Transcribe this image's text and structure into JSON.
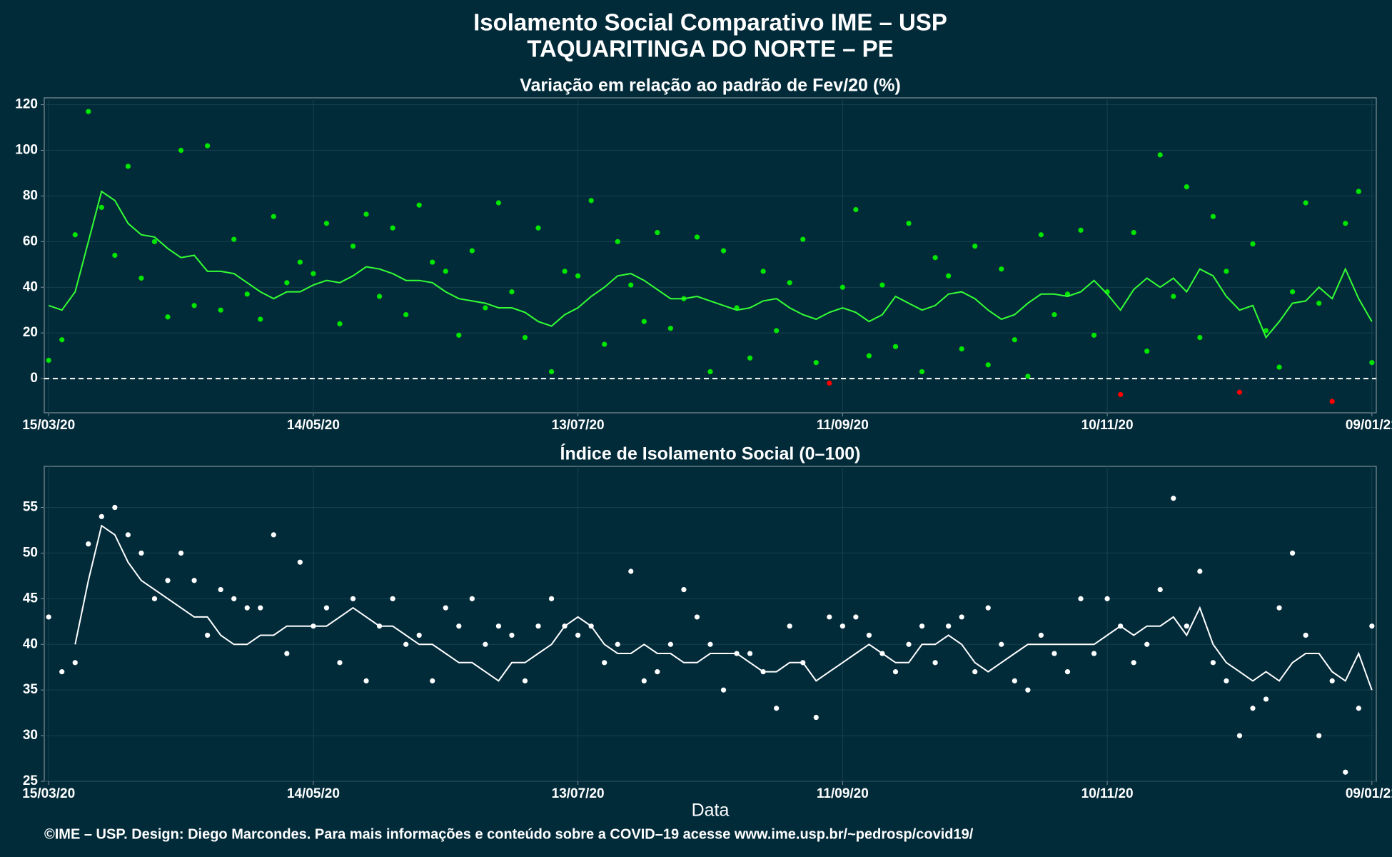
{
  "title": "Isolamento Social Comparativo IME – USP",
  "subtitle": "TAQUARITINGA DO NORTE – PE",
  "footer": "©IME – USP. Design: Diego Marcondes. Para mais informações e conteúdo sobre a COVID–19 acesse www.ime.usp.br/~pedrosp/covid19/",
  "chart_data": [
    {
      "type": "scatter",
      "title": "Variação em relação ao padrão de Fev/20 (%)",
      "x": [
        0,
        3,
        6,
        9,
        12,
        15,
        18,
        21,
        24,
        27,
        30,
        33,
        36,
        39,
        42,
        45,
        48,
        51,
        54,
        57,
        60,
        63,
        66,
        69,
        72,
        75,
        78,
        81,
        84,
        87,
        90,
        93,
        96,
        99,
        102,
        105,
        108,
        111,
        114,
        117,
        120,
        123,
        126,
        129,
        132,
        135,
        138,
        141,
        144,
        147,
        150,
        153,
        156,
        159,
        162,
        165,
        168,
        171,
        174,
        177,
        180,
        183,
        186,
        189,
        192,
        195,
        198,
        201,
        204,
        207,
        210,
        213,
        216,
        219,
        222,
        225,
        228,
        231,
        234,
        237,
        240,
        243,
        246,
        249,
        252,
        255,
        258,
        261,
        264,
        267,
        270,
        273,
        276,
        279,
        282,
        285,
        288,
        291,
        294,
        297,
        300
      ],
      "series": [
        {
          "color": "#00e600",
          "negative_color": "#ff0000",
          "mode": "points",
          "values": [
            8,
            17,
            63,
            117,
            75,
            54,
            93,
            44,
            60,
            27,
            100,
            32,
            102,
            30,
            61,
            37,
            26,
            71,
            42,
            51,
            46,
            68,
            24,
            58,
            72,
            36,
            66,
            28,
            76,
            51,
            47,
            19,
            56,
            31,
            77,
            38,
            18,
            66,
            3,
            47,
            45,
            78,
            15,
            60,
            41,
            25,
            64,
            22,
            35,
            62,
            3,
            56,
            31,
            9,
            47,
            21,
            42,
            61,
            7,
            -2,
            40,
            74,
            10,
            41,
            14,
            68,
            3,
            53,
            45,
            13,
            58,
            6,
            48,
            17,
            1,
            63,
            28,
            37,
            65,
            19,
            38,
            -7,
            64,
            12,
            98,
            36,
            84,
            18,
            71,
            47,
            -6,
            59,
            21,
            5,
            38,
            77,
            33,
            -10,
            68,
            82,
            7
          ]
        },
        {
          "color": "#33ff33",
          "mode": "line",
          "values": [
            32,
            30,
            38,
            60,
            82,
            78,
            68,
            63,
            62,
            57,
            53,
            54,
            47,
            47,
            46,
            42,
            38,
            35,
            38,
            38,
            41,
            43,
            42,
            45,
            49,
            48,
            46,
            43,
            43,
            42,
            38,
            35,
            34,
            33,
            31,
            31,
            29,
            25,
            23,
            28,
            31,
            36,
            40,
            45,
            46,
            43,
            39,
            35,
            35,
            36,
            34,
            32,
            30,
            31,
            34,
            35,
            31,
            28,
            26,
            29,
            31,
            29,
            25,
            28,
            36,
            33,
            30,
            32,
            37,
            38,
            35,
            30,
            26,
            28,
            33,
            37,
            37,
            36,
            38,
            43,
            37,
            30,
            39,
            44,
            40,
            44,
            38,
            48,
            45,
            36,
            30,
            32,
            18,
            25,
            33,
            34,
            40,
            35,
            48,
            35,
            25
          ]
        }
      ],
      "reference_line": 0,
      "xlim": [
        -1,
        301
      ],
      "ylim": [
        -15,
        123
      ],
      "yticks": [
        0,
        20,
        40,
        60,
        80,
        100,
        120
      ],
      "xticks": [
        {
          "value": 0,
          "label": "15/03/20"
        },
        {
          "value": 60,
          "label": "14/05/20"
        },
        {
          "value": 120,
          "label": "13/07/20"
        },
        {
          "value": 180,
          "label": "11/09/20"
        },
        {
          "value": 240,
          "label": "10/11/20"
        },
        {
          "value": 300,
          "label": "09/01/21"
        }
      ],
      "grid": true
    },
    {
      "type": "scatter",
      "title": "Índice de Isolamento Social (0–100)",
      "xlabel": "Data",
      "x": [
        0,
        3,
        6,
        9,
        12,
        15,
        18,
        21,
        24,
        27,
        30,
        33,
        36,
        39,
        42,
        45,
        48,
        51,
        54,
        57,
        60,
        63,
        66,
        69,
        72,
        75,
        78,
        81,
        84,
        87,
        90,
        93,
        96,
        99,
        102,
        105,
        108,
        111,
        114,
        117,
        120,
        123,
        126,
        129,
        132,
        135,
        138,
        141,
        144,
        147,
        150,
        153,
        156,
        159,
        162,
        165,
        168,
        171,
        174,
        177,
        180,
        183,
        186,
        189,
        192,
        195,
        198,
        201,
        204,
        207,
        210,
        213,
        216,
        219,
        222,
        225,
        228,
        231,
        234,
        237,
        240,
        243,
        246,
        249,
        252,
        255,
        258,
        261,
        264,
        267,
        270,
        273,
        276,
        279,
        282,
        285,
        288,
        291,
        294,
        297,
        300
      ],
      "series": [
        {
          "color": "#ffffff",
          "mode": "points",
          "values": [
            43,
            37,
            38,
            51,
            54,
            55,
            52,
            50,
            45,
            47,
            50,
            47,
            41,
            46,
            45,
            44,
            44,
            52,
            39,
            49,
            42,
            44,
            38,
            45,
            36,
            42,
            45,
            40,
            41,
            36,
            44,
            42,
            45,
            40,
            42,
            41,
            36,
            42,
            45,
            42,
            41,
            42,
            38,
            40,
            48,
            36,
            37,
            40,
            46,
            43,
            40,
            35,
            39,
            39,
            37,
            33,
            42,
            38,
            32,
            43,
            42,
            43,
            41,
            39,
            37,
            40,
            42,
            38,
            42,
            43,
            37,
            44,
            40,
            36,
            35,
            41,
            39,
            37,
            45,
            39,
            45,
            42,
            38,
            40,
            46,
            56,
            42,
            48,
            38,
            36,
            30,
            33,
            34,
            44,
            50,
            41,
            30,
            36,
            26,
            33,
            42
          ]
        },
        {
          "color": "#ffffff",
          "mode": "line",
          "values": [
            null,
            null,
            40,
            47,
            53,
            52,
            49,
            47,
            46,
            45,
            44,
            43,
            43,
            41,
            40,
            40,
            41,
            41,
            42,
            42,
            42,
            42,
            43,
            44,
            43,
            42,
            42,
            41,
            40,
            40,
            39,
            38,
            38,
            37,
            36,
            38,
            38,
            39,
            40,
            42,
            43,
            42,
            40,
            39,
            39,
            40,
            39,
            39,
            38,
            38,
            39,
            39,
            39,
            38,
            37,
            37,
            38,
            38,
            36,
            37,
            38,
            39,
            40,
            39,
            38,
            38,
            40,
            40,
            41,
            40,
            38,
            37,
            38,
            39,
            40,
            40,
            40,
            40,
            40,
            40,
            41,
            42,
            41,
            42,
            42,
            43,
            41,
            44,
            40,
            38,
            37,
            36,
            37,
            36,
            38,
            39,
            39,
            37,
            36,
            39,
            35
          ]
        }
      ],
      "xlim": [
        -1,
        301
      ],
      "ylim": [
        25,
        59.5
      ],
      "yticks": [
        25,
        30,
        35,
        40,
        45,
        50,
        55
      ],
      "xticks": [
        {
          "value": 0,
          "label": "15/03/20"
        },
        {
          "value": 60,
          "label": "14/05/20"
        },
        {
          "value": 120,
          "label": "13/07/20"
        },
        {
          "value": 180,
          "label": "11/09/20"
        },
        {
          "value": 240,
          "label": "10/11/20"
        },
        {
          "value": 300,
          "label": "09/01/21"
        }
      ],
      "grid": true
    }
  ]
}
